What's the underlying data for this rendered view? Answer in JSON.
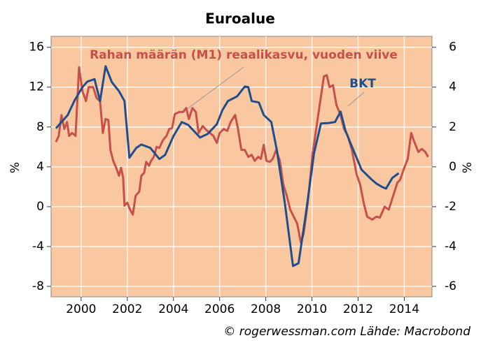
{
  "chart_data": {
    "type": "line",
    "title": "Euroalue",
    "ylabel": "%",
    "y2label": "%",
    "xlim": [
      1998.7,
      2015.2
    ],
    "xticks": [
      2000,
      2002,
      2004,
      2006,
      2008,
      2010,
      2012,
      2014
    ],
    "ylim": [
      -9.05,
      17.1
    ],
    "yticks": [
      -8,
      -4,
      0,
      4,
      8,
      12,
      16
    ],
    "y2lim": [
      -6.525,
      6.55
    ],
    "y2ticks": [
      -6,
      -4,
      -2,
      0,
      2,
      4,
      6
    ],
    "grid": true,
    "background": "#f9c8a0",
    "series": [
      {
        "name": "Rahan määrän (M1) reaalikasvu, vuoden viive",
        "color": "#c8504b",
        "x": [
          1998.91,
          1999.03,
          1999.15,
          1999.27,
          1999.39,
          1999.48,
          1999.61,
          1999.76,
          1999.91,
          2000.06,
          2000.21,
          2000.33,
          2000.52,
          2000.67,
          2000.82,
          2000.94,
          2001.06,
          2001.18,
          2001.27,
          2001.39,
          2001.52,
          2001.64,
          2001.73,
          2001.82,
          2001.88,
          2002.0,
          2002.12,
          2002.24,
          2002.36,
          2002.52,
          2002.61,
          2002.73,
          2002.82,
          2002.94,
          2003.03,
          2003.15,
          2003.27,
          2003.39,
          2003.55,
          2003.7,
          2003.82,
          2003.94,
          2004.06,
          2004.24,
          2004.42,
          2004.55,
          2004.67,
          2004.82,
          2004.97,
          2005.09,
          2005.27,
          2005.42,
          2005.58,
          2005.73,
          2005.88,
          2006.0,
          2006.18,
          2006.33,
          2006.48,
          2006.67,
          2006.79,
          2006.94,
          2007.09,
          2007.24,
          2007.39,
          2007.52,
          2007.67,
          2007.79,
          2007.91,
          2008.03,
          2008.18,
          2008.3,
          2008.45,
          2008.61,
          2008.76,
          2008.91,
          2009.06,
          2009.21,
          2009.36,
          2009.52,
          2009.64,
          2009.82,
          2010.03,
          2010.27,
          2010.52,
          2010.64,
          2010.76,
          2010.91,
          2011.06,
          2011.24,
          2011.39,
          2011.55,
          2011.73,
          2011.94,
          2012.09,
          2012.24,
          2012.39,
          2012.61,
          2012.79,
          2012.94,
          2013.15,
          2013.33,
          2013.52,
          2013.7,
          2013.82,
          2014.0,
          2014.15,
          2014.3,
          2014.45,
          2014.61,
          2014.76,
          2014.91,
          2015.03
        ],
        "values": [
          6.5,
          7.1,
          9.2,
          7.8,
          8.5,
          7.1,
          7.4,
          7.1,
          14.0,
          11.6,
          10.6,
          12.0,
          12.0,
          10.9,
          10.6,
          7.4,
          8.8,
          8.7,
          5.7,
          4.6,
          3.9,
          3.1,
          3.9,
          2.9,
          0.1,
          0.4,
          -0.3,
          -0.8,
          1.1,
          1.5,
          3.1,
          3.4,
          4.5,
          4.1,
          4.6,
          5.0,
          6.0,
          5.9,
          6.7,
          7.1,
          7.8,
          7.9,
          9.3,
          9.5,
          9.5,
          9.9,
          8.8,
          9.9,
          9.5,
          7.4,
          8.1,
          7.7,
          7.4,
          7.1,
          6.4,
          7.4,
          7.8,
          7.6,
          8.5,
          9.2,
          7.9,
          5.7,
          5.7,
          5.0,
          5.2,
          4.6,
          5.0,
          4.8,
          6.2,
          4.6,
          4.5,
          4.8,
          5.7,
          4.6,
          2.2,
          1.1,
          -0.3,
          -1.0,
          -1.7,
          -3.6,
          -2.7,
          0.4,
          5.3,
          9.2,
          13.1,
          13.2,
          12.0,
          12.2,
          10.2,
          9.2,
          7.8,
          7.1,
          5.7,
          3.2,
          2.2,
          0.4,
          -1.0,
          -1.3,
          -1.0,
          -1.1,
          0.0,
          -0.3,
          1.1,
          2.4,
          2.7,
          3.9,
          4.8,
          7.4,
          6.4,
          5.5,
          5.8,
          5.5,
          5.0
        ]
      },
      {
        "name": "BKT",
        "color": "#1f4e8c",
        "axis": "y2",
        "x": [
          1998.91,
          1999.42,
          1999.7,
          2000.06,
          2000.27,
          2000.58,
          2000.82,
          2001.06,
          2001.33,
          2001.64,
          2001.88,
          2002.09,
          2002.39,
          2002.61,
          2003.0,
          2003.39,
          2003.64,
          2004.0,
          2004.36,
          2004.64,
          2005.15,
          2005.48,
          2005.88,
          2006.12,
          2006.36,
          2006.76,
          2007.09,
          2007.24,
          2007.39,
          2007.7,
          2007.91,
          2008.24,
          2008.48,
          2008.82,
          2009.18,
          2009.42,
          2009.73,
          2010.09,
          2010.39,
          2010.73,
          2011.0,
          2011.24,
          2011.45,
          2011.73,
          2012.15,
          2012.55,
          2012.79,
          2013.06,
          2013.21,
          2013.48,
          2013.76
        ],
        "values": [
          1.93,
          2.6,
          3.3,
          4.0,
          4.28,
          4.4,
          3.3,
          5.05,
          4.25,
          3.8,
          3.3,
          0.46,
          0.95,
          1.12,
          0.95,
          0.39,
          0.6,
          1.54,
          2.25,
          2.1,
          1.47,
          1.65,
          2.14,
          2.84,
          3.3,
          3.54,
          4.03,
          4.0,
          3.3,
          3.23,
          2.6,
          2.25,
          0.84,
          -1.79,
          -4.98,
          -4.84,
          -2.39,
          0.67,
          2.18,
          2.2,
          2.25,
          2.77,
          1.82,
          1.02,
          -0.14,
          -0.6,
          -0.84,
          -1.02,
          -1.09,
          -0.56,
          -0.32
        ]
      }
    ],
    "footer": "© rogerwessman.com Lähde: Macrobond"
  }
}
